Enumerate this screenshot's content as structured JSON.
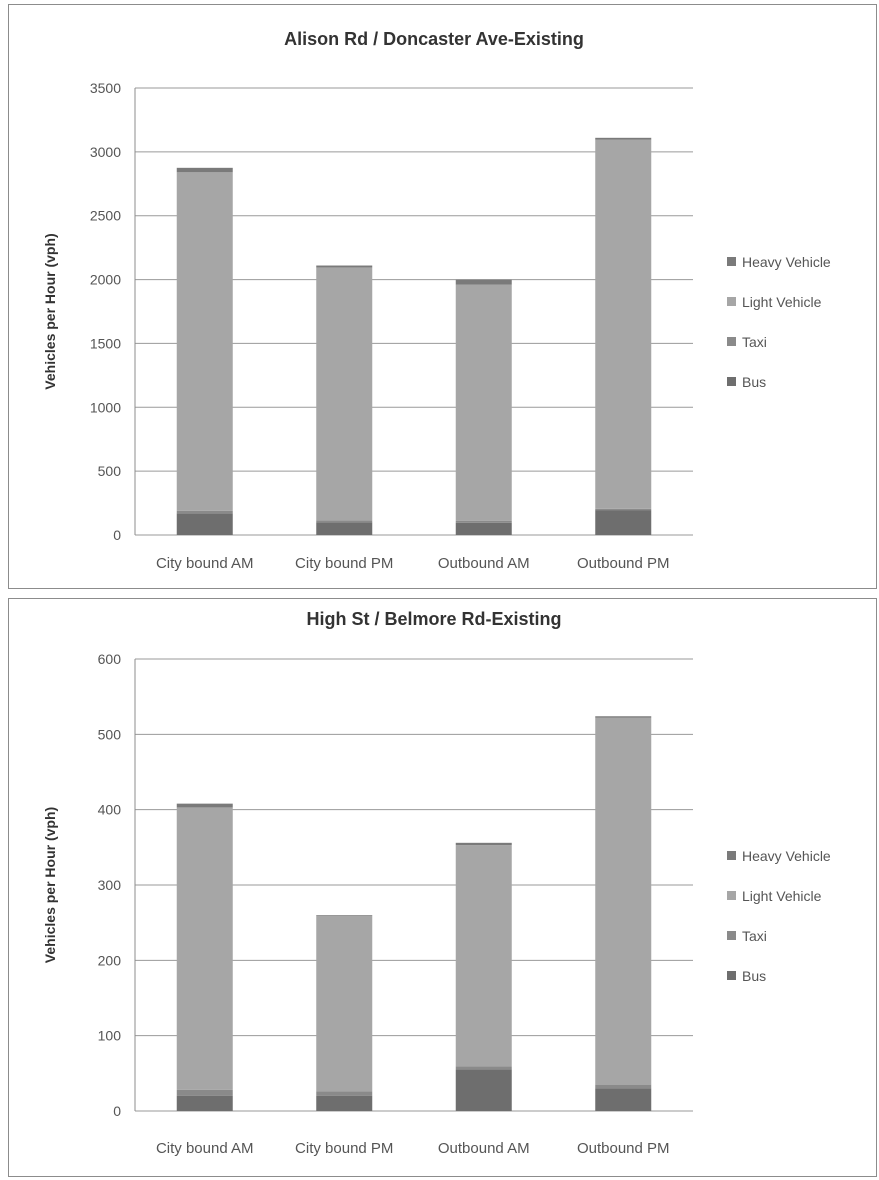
{
  "chart_data": [
    {
      "type": "bar",
      "stacked": true,
      "title": "Alison Rd / Doncaster Ave-Existing",
      "xlabel": "",
      "ylabel": "Vehicles per Hour (vph)",
      "ylim": [
        0,
        3500
      ],
      "yticks": [
        0,
        500,
        1000,
        1500,
        2000,
        2500,
        3000,
        3500
      ],
      "grid": true,
      "legend_position": "right",
      "categories": [
        "City bound AM",
        "City bound PM",
        "Outbound AM",
        "Outbound PM"
      ],
      "series": [
        {
          "name": "Bus",
          "color": "#6e6e6e",
          "values": [
            170,
            100,
            95,
            195
          ]
        },
        {
          "name": "Taxi",
          "color": "#8a8a8a",
          "values": [
            20,
            15,
            15,
            10
          ]
        },
        {
          "name": "Light Vehicle",
          "color": "#a6a6a6",
          "values": [
            2650,
            1980,
            1850,
            2890
          ]
        },
        {
          "name": "Heavy Vehicle",
          "color": "#7a7a7a",
          "values": [
            35,
            15,
            40,
            15
          ]
        }
      ]
    },
    {
      "type": "bar",
      "stacked": true,
      "title": "High St / Belmore Rd-Existing",
      "xlabel": "",
      "ylabel": "Vehicles per Hour (vph)",
      "ylim": [
        0,
        600
      ],
      "yticks": [
        0,
        100,
        200,
        300,
        400,
        500,
        600
      ],
      "grid": true,
      "legend_position": "right",
      "categories": [
        "City bound AM",
        "City bound PM",
        "Outbound AM",
        "Outbound PM"
      ],
      "series": [
        {
          "name": "Bus",
          "color": "#6e6e6e",
          "values": [
            20,
            20,
            55,
            30
          ]
        },
        {
          "name": "Taxi",
          "color": "#8a8a8a",
          "values": [
            8,
            6,
            4,
            5
          ]
        },
        {
          "name": "Light Vehicle",
          "color": "#a6a6a6",
          "values": [
            375,
            233,
            294,
            487
          ]
        },
        {
          "name": "Heavy Vehicle",
          "color": "#7a7a7a",
          "values": [
            5,
            1,
            3,
            2
          ]
        }
      ]
    }
  ]
}
